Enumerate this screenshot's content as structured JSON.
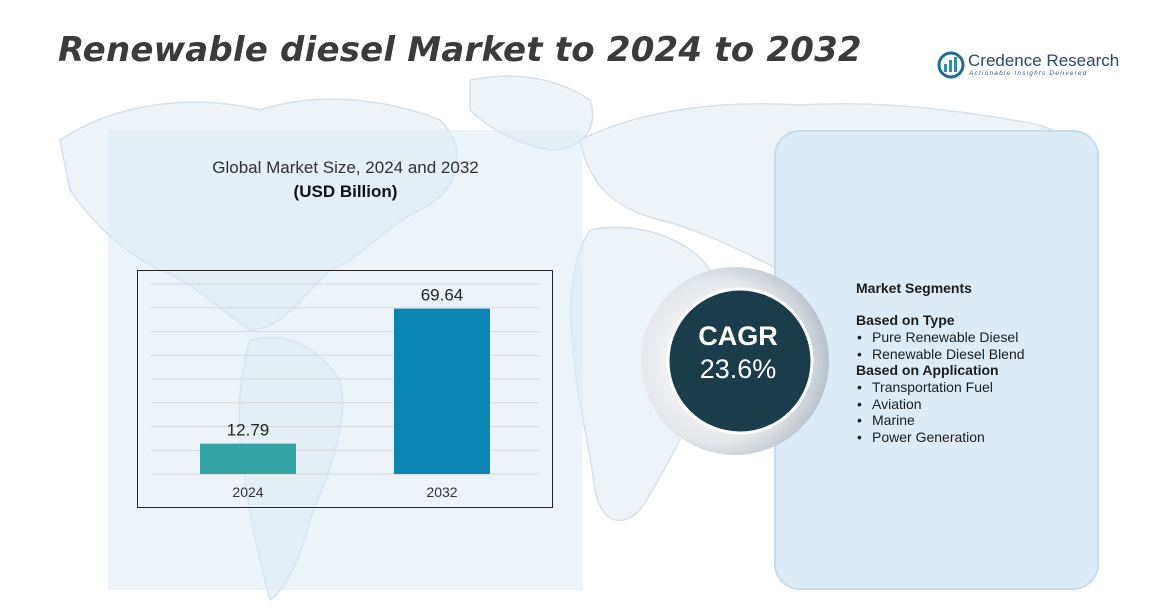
{
  "header": {
    "title": "Renewable diesel Market to 2024 to 2032",
    "logo_name": "Credence Research",
    "logo_tagline": "Actionable Insights Delivered"
  },
  "chart_data": {
    "type": "bar",
    "title": "Global Market Size, 2024 and 2032",
    "unit": "(USD Billion)",
    "categories": [
      "2024",
      "2032"
    ],
    "values": [
      12.79,
      69.64
    ],
    "data_labels": [
      "12.79",
      "69.64"
    ],
    "bar_colors": [
      "#33a3a6",
      "#0b85b4"
    ],
    "ylim": [
      0,
      80
    ],
    "grid": true,
    "xlabel": "",
    "ylabel": ""
  },
  "cagr": {
    "label": "CAGR",
    "value": "23.6%"
  },
  "segments": {
    "title": "Market Segments",
    "groups": [
      {
        "heading": "Based on Type",
        "items": [
          "Pure Renewable Diesel",
          "Renewable Diesel Blend"
        ]
      },
      {
        "heading": "Based on Application",
        "items": [
          "Transportation Fuel",
          "Aviation",
          "Marine",
          "Power Generation"
        ]
      }
    ]
  },
  "colors": {
    "title": "#3b3b3b",
    "cagr_circle": "#1b3c4b",
    "panel_bg": "#dcebf6"
  }
}
